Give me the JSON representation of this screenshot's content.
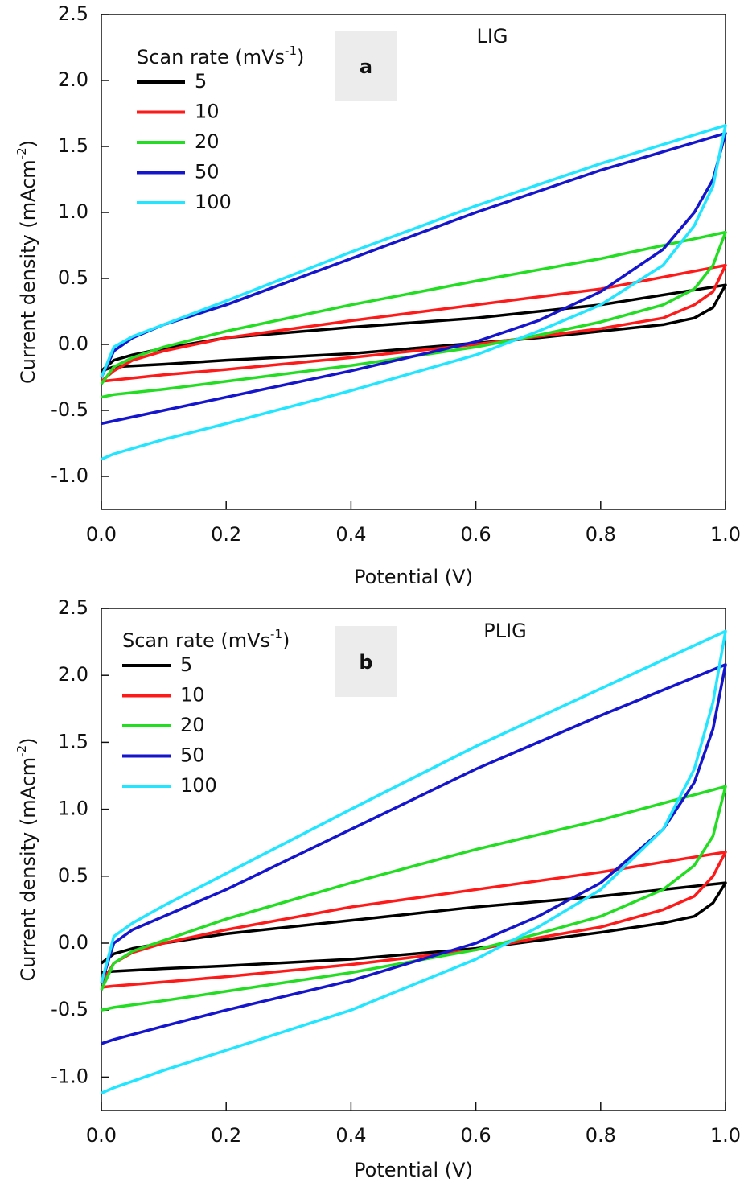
{
  "chart_data": [
    {
      "type": "line",
      "panel_label": "a",
      "annotation": "LIG",
      "x_label": "Potential (V)",
      "y_label": {
        "text": "Current  density (mAcm",
        "sup": "-2",
        "end": ")"
      },
      "legend_title": {
        "text": "Scan rate (mVs",
        "sup": "-1",
        "end": ")"
      },
      "xlim": [
        0,
        1.0
      ],
      "ylim": [
        -1.25,
        2.5
      ],
      "xticks": [
        {
          "value": 0,
          "label": "0.0"
        },
        0.2,
        0.4,
        0.6,
        0.8,
        {
          "value": 1,
          "label": "1.0"
        }
      ],
      "yticks": [
        {
          "value": -1,
          "label": "-1.0"
        },
        -0.5,
        {
          "value": 0,
          "label": "0.0"
        },
        0.5,
        {
          "value": 1,
          "label": "1.0"
        },
        1.5,
        {
          "value": 2,
          "label": "2.0"
        },
        2.5
      ],
      "x": [
        0,
        0.02,
        0.05,
        0.1,
        0.2,
        0.4,
        0.6,
        0.8,
        1.0,
        1.0,
        0.98,
        0.95,
        0.9,
        0.8,
        0.7,
        0.6,
        0.4,
        0.2,
        0.1,
        0.02,
        0
      ],
      "series": [
        {
          "name": "5",
          "color": "#000000",
          "values": [
            -0.2,
            -0.12,
            -0.08,
            -0.03,
            0.05,
            0.13,
            0.2,
            0.3,
            0.45,
            0.45,
            0.28,
            0.2,
            0.15,
            0.1,
            0.05,
            0.01,
            -0.07,
            -0.12,
            -0.15,
            -0.17,
            -0.2
          ]
        },
        {
          "name": "10",
          "color": "#ff1a1a",
          "values": [
            -0.28,
            -0.2,
            -0.12,
            -0.05,
            0.05,
            0.18,
            0.3,
            0.42,
            0.6,
            0.6,
            0.4,
            0.3,
            0.2,
            0.12,
            0.06,
            0.0,
            -0.1,
            -0.19,
            -0.23,
            -0.27,
            -0.28
          ]
        },
        {
          "name": "20",
          "color": "#22dd22",
          "values": [
            -0.3,
            -0.17,
            -0.1,
            -0.02,
            0.1,
            0.3,
            0.48,
            0.65,
            0.85,
            0.85,
            0.6,
            0.42,
            0.3,
            0.17,
            0.07,
            -0.02,
            -0.16,
            -0.28,
            -0.34,
            -0.38,
            -0.4
          ]
        },
        {
          "name": "50",
          "color": "#1515cc",
          "values": [
            -0.25,
            -0.05,
            0.05,
            0.15,
            0.3,
            0.65,
            1.0,
            1.32,
            1.6,
            1.6,
            1.25,
            1.0,
            0.72,
            0.4,
            0.18,
            0.02,
            -0.2,
            -0.4,
            -0.5,
            -0.58,
            -0.6
          ]
        },
        {
          "name": "100",
          "color": "#22e6ff",
          "values": [
            -0.25,
            -0.02,
            0.06,
            0.15,
            0.33,
            0.7,
            1.05,
            1.37,
            1.66,
            1.66,
            1.2,
            0.9,
            0.6,
            0.3,
            0.1,
            -0.08,
            -0.35,
            -0.6,
            -0.72,
            -0.83,
            -0.87
          ]
        }
      ]
    },
    {
      "type": "line",
      "panel_label": "b",
      "annotation": "PLIG",
      "x_label": "Potential (V)",
      "y_label": {
        "text": "Current  density (mAcm",
        "sup": "-2",
        "end": ")"
      },
      "legend_title": {
        "text": "Scan rate (mVs",
        "sup": "-1",
        "end": ")"
      },
      "xlim": [
        0,
        1.0
      ],
      "ylim": [
        -1.25,
        2.5
      ],
      "xticks": [
        {
          "value": 0,
          "label": "0.0"
        },
        0.2,
        0.4,
        0.6,
        0.8,
        {
          "value": 1,
          "label": "1.0"
        }
      ],
      "yticks": [
        {
          "value": -1,
          "label": "-1.0"
        },
        -0.5,
        {
          "value": 0,
          "label": "0.0"
        },
        0.5,
        {
          "value": 1,
          "label": "1.0"
        },
        1.5,
        {
          "value": 2,
          "label": "2.0"
        },
        2.5
      ],
      "x": [
        0,
        0.02,
        0.05,
        0.1,
        0.2,
        0.4,
        0.6,
        0.8,
        1.0,
        1.0,
        0.98,
        0.95,
        0.9,
        0.8,
        0.7,
        0.6,
        0.4,
        0.2,
        0.1,
        0.02,
        0
      ],
      "series": [
        {
          "name": "5",
          "color": "#000000",
          "values": [
            -0.15,
            -0.08,
            -0.04,
            0.0,
            0.07,
            0.17,
            0.27,
            0.35,
            0.45,
            0.45,
            0.3,
            0.2,
            0.15,
            0.08,
            0.02,
            -0.04,
            -0.12,
            -0.17,
            -0.19,
            -0.21,
            -0.22
          ]
        },
        {
          "name": "10",
          "color": "#ff1a1a",
          "values": [
            -0.3,
            -0.15,
            -0.07,
            0.0,
            0.1,
            0.27,
            0.4,
            0.53,
            0.68,
            0.68,
            0.5,
            0.35,
            0.25,
            0.12,
            0.04,
            -0.05,
            -0.16,
            -0.25,
            -0.29,
            -0.32,
            -0.33
          ]
        },
        {
          "name": "20",
          "color": "#22dd22",
          "values": [
            -0.35,
            -0.15,
            -0.06,
            0.02,
            0.18,
            0.45,
            0.7,
            0.92,
            1.17,
            1.17,
            0.8,
            0.58,
            0.4,
            0.2,
            0.07,
            -0.05,
            -0.22,
            -0.36,
            -0.43,
            -0.48,
            -0.5
          ]
        },
        {
          "name": "50",
          "color": "#1515cc",
          "values": [
            -0.3,
            0.0,
            0.1,
            0.2,
            0.4,
            0.85,
            1.3,
            1.7,
            2.08,
            2.08,
            1.6,
            1.2,
            0.85,
            0.45,
            0.2,
            0.0,
            -0.28,
            -0.5,
            -0.62,
            -0.72,
            -0.75
          ]
        },
        {
          "name": "100",
          "color": "#22e6ff",
          "values": [
            -0.3,
            0.05,
            0.15,
            0.28,
            0.52,
            1.0,
            1.47,
            1.9,
            2.33,
            2.33,
            1.8,
            1.3,
            0.85,
            0.4,
            0.12,
            -0.12,
            -0.5,
            -0.8,
            -0.95,
            -1.08,
            -1.12
          ]
        }
      ]
    }
  ]
}
